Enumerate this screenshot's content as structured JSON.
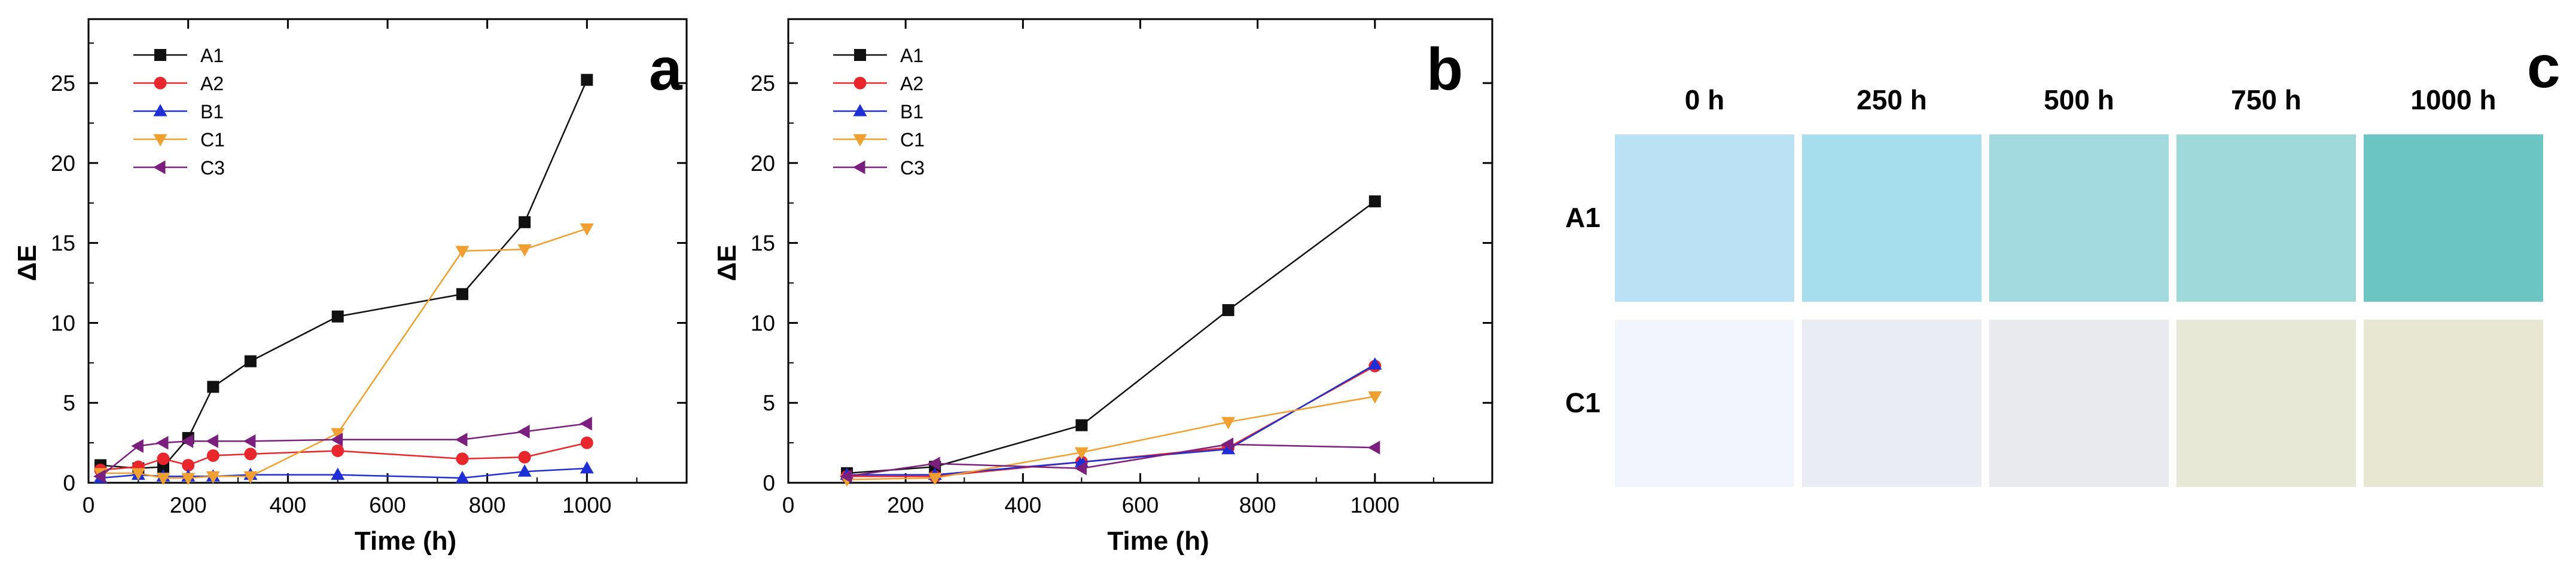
{
  "chart_data": [
    {
      "panel": "a",
      "type": "line",
      "xlabel": "Time (h)",
      "ylabel": "ΔE",
      "xlim": [
        0,
        1200
      ],
      "ylim": [
        0,
        29
      ],
      "xticks": [
        "0",
        "200",
        "400",
        "600",
        "800",
        "1000"
      ],
      "yticks": [
        "0",
        "5",
        "10",
        "15",
        "20",
        "25"
      ],
      "legend_position": "top-left",
      "series": [
        {
          "name": "A1",
          "color": "#111111",
          "marker": "square",
          "x": [
            24,
            100,
            150,
            200,
            250,
            325,
            500,
            750,
            875,
            1000
          ],
          "y": [
            1.1,
            0.9,
            1.0,
            2.8,
            6.0,
            7.6,
            10.4,
            11.8,
            16.3,
            25.2
          ]
        },
        {
          "name": "A2",
          "color": "#e8262b",
          "marker": "circle",
          "x": [
            24,
            100,
            150,
            200,
            250,
            325,
            500,
            750,
            875,
            1000
          ],
          "y": [
            0.8,
            1.0,
            1.5,
            1.1,
            1.7,
            1.8,
            2.0,
            1.5,
            1.6,
            2.5
          ]
        },
        {
          "name": "B1",
          "color": "#1f2fd6",
          "marker": "triangle-up",
          "x": [
            24,
            100,
            150,
            200,
            250,
            325,
            500,
            750,
            875,
            1000
          ],
          "y": [
            0.3,
            0.5,
            0.4,
            0.4,
            0.4,
            0.5,
            0.5,
            0.3,
            0.7,
            0.9
          ]
        },
        {
          "name": "C1",
          "color": "#f0a030",
          "marker": "triangle-down",
          "x": [
            24,
            100,
            150,
            200,
            250,
            325,
            500,
            750,
            875,
            1000
          ],
          "y": [
            0.6,
            0.6,
            0.3,
            0.3,
            0.4,
            0.4,
            3.1,
            14.5,
            14.6,
            15.9
          ]
        },
        {
          "name": "C3",
          "color": "#7b1f7e",
          "marker": "triangle-left",
          "x": [
            24,
            100,
            150,
            200,
            250,
            325,
            500,
            750,
            875,
            1000
          ],
          "y": [
            0.4,
            2.3,
            2.5,
            2.6,
            2.6,
            2.6,
            2.7,
            2.7,
            3.2,
            3.7
          ]
        }
      ]
    },
    {
      "panel": "b",
      "type": "line",
      "xlabel": "Time (h)",
      "ylabel": "ΔE",
      "xlim": [
        0,
        1200
      ],
      "ylim": [
        0,
        29
      ],
      "xticks": [
        "0",
        "200",
        "400",
        "600",
        "800",
        "1000"
      ],
      "yticks": [
        "0",
        "5",
        "10",
        "15",
        "20",
        "25"
      ],
      "legend_position": "top-left",
      "series": [
        {
          "name": "A1",
          "color": "#111111",
          "marker": "square",
          "x": [
            100,
            250,
            500,
            750,
            1000
          ],
          "y": [
            0.6,
            1.0,
            3.6,
            10.8,
            17.6
          ]
        },
        {
          "name": "A2",
          "color": "#e8262b",
          "marker": "circle",
          "x": [
            100,
            250,
            500,
            750,
            1000
          ],
          "y": [
            0.4,
            0.4,
            1.3,
            2.2,
            7.3
          ]
        },
        {
          "name": "B1",
          "color": "#1f2fd6",
          "marker": "triangle-up",
          "x": [
            100,
            250,
            500,
            750,
            1000
          ],
          "y": [
            0.5,
            0.5,
            1.3,
            2.1,
            7.4
          ]
        },
        {
          "name": "C1",
          "color": "#f0a030",
          "marker": "triangle-down",
          "x": [
            100,
            250,
            500,
            750,
            1000
          ],
          "y": [
            0.2,
            0.3,
            1.9,
            3.8,
            5.4
          ]
        },
        {
          "name": "C3",
          "color": "#7b1f7e",
          "marker": "triangle-left",
          "x": [
            100,
            250,
            500,
            750,
            1000
          ],
          "y": [
            0.4,
            1.2,
            0.9,
            2.4,
            2.2
          ]
        }
      ]
    }
  ],
  "panel_labels": {
    "a": "a",
    "b": "b",
    "c": "c"
  },
  "swatches": {
    "columns": [
      "0 h",
      "250 h",
      "500 h",
      "750 h",
      "1000 h"
    ],
    "rows": [
      {
        "label": "A1",
        "colors": [
          "#bbe2f4",
          "#a7deee",
          "#a2dadf",
          "#9fd9da",
          "#6bc5c3"
        ]
      },
      {
        "label": "C1",
        "colors": [
          "#f2f5fc",
          "#eaecf3",
          "#e9eaed",
          "#e7e8d6",
          "#e8e7d1"
        ]
      }
    ]
  }
}
